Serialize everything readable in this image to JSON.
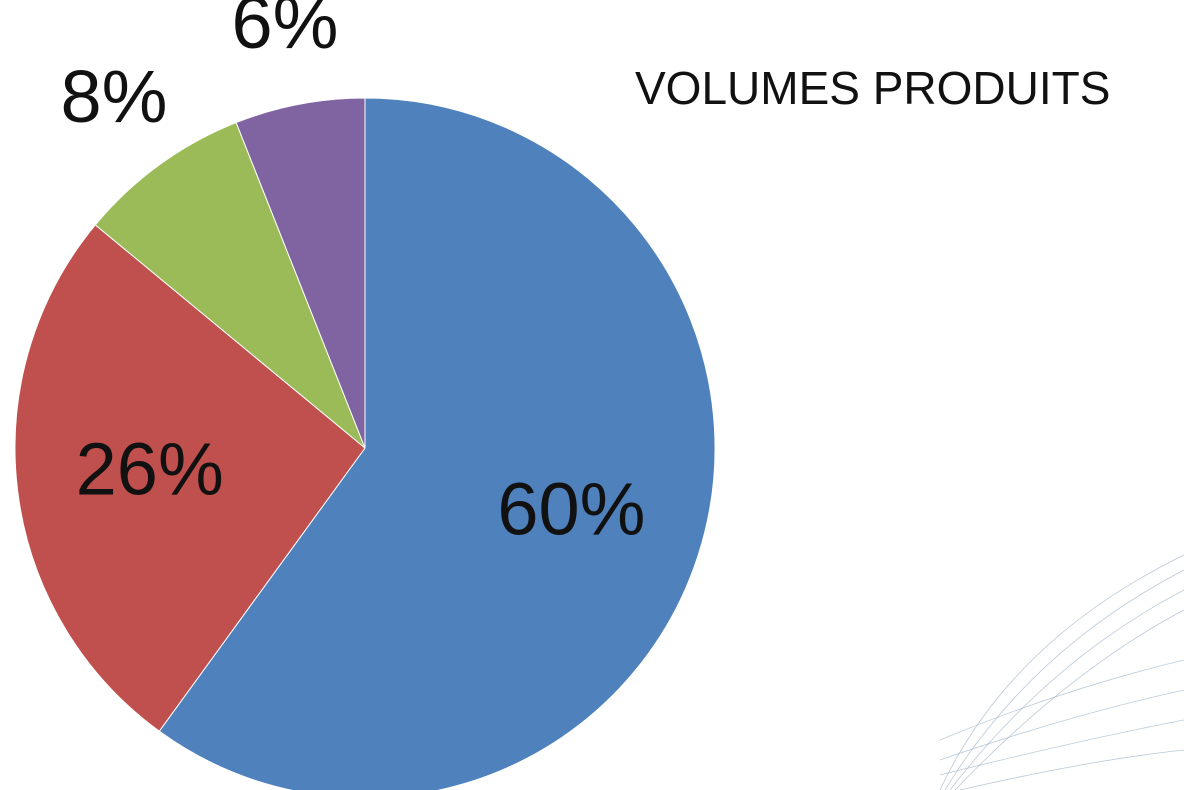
{
  "chart_data": {
    "type": "pie",
    "title": "VOLUMES PRODUITS",
    "values": [
      60,
      26,
      8,
      6
    ],
    "value_labels": [
      "60%",
      "26%",
      "8%",
      "6%"
    ],
    "colors": [
      "#4f81bd",
      "#c0504d",
      "#9bbb59",
      "#8064a2"
    ]
  }
}
